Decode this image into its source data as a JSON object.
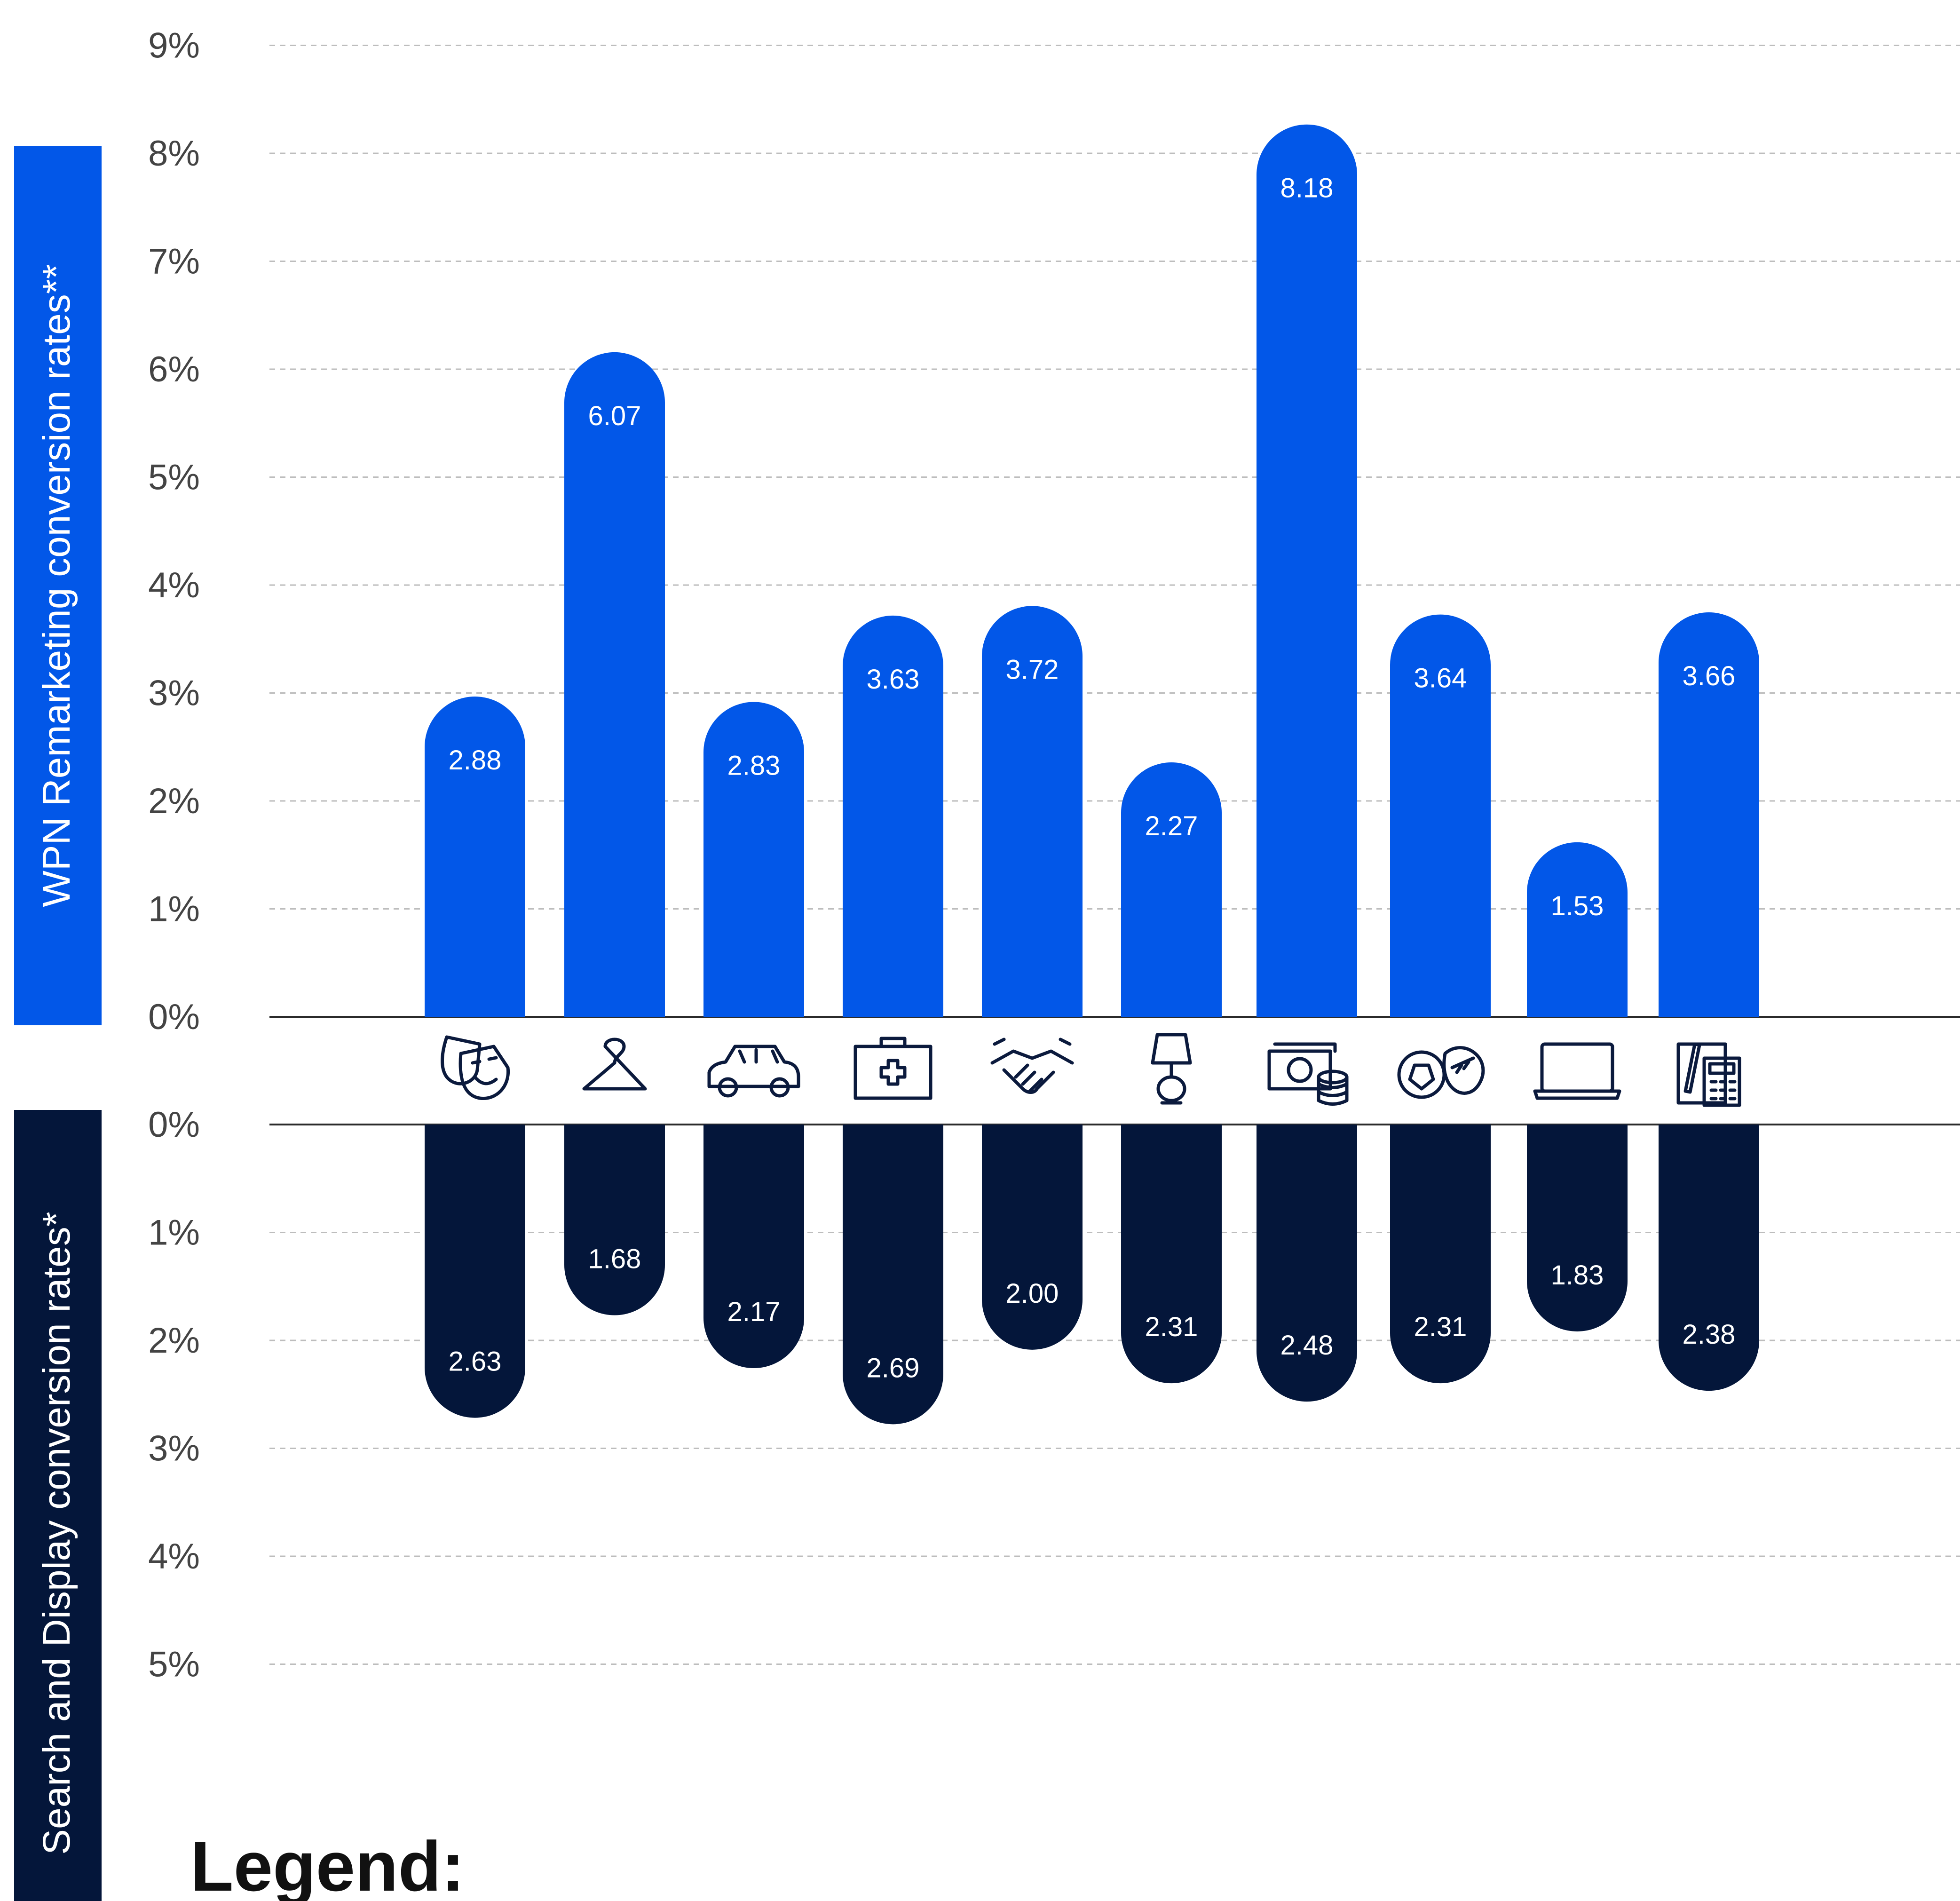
{
  "chart_data": {
    "type": "bar",
    "categories": [
      "Arts & Entertainment",
      "Apparel",
      "Automotive",
      "Health & Medical",
      "Business Services",
      "Home & Furniture",
      "Finance",
      "Sports",
      "Technology",
      "Office & Accounting"
    ],
    "category_icons": [
      "theater-masks-icon",
      "hanger-icon",
      "car-icon",
      "first-aid-kit-icon",
      "handshake-icon",
      "lamp-icon",
      "money-coins-icon",
      "sports-balls-icon",
      "laptop-icon",
      "calculator-icon"
    ],
    "series": [
      {
        "axis_label": "WPN Remarketing conversion rates**",
        "color": "#0257E8",
        "direction": "up",
        "values": [
          2.88,
          6.07,
          2.83,
          3.63,
          3.72,
          2.27,
          8.18,
          3.64,
          1.53,
          3.66
        ],
        "labels": [
          "2.88",
          "6.07",
          "2.83",
          "3.63",
          "3.72",
          "2.27",
          "8.18",
          "3.64",
          "1.53",
          "3.66"
        ]
      },
      {
        "axis_label": "Search and Display conversion rates*",
        "color": "#04163A",
        "direction": "down",
        "values": [
          2.63,
          1.68,
          2.17,
          2.69,
          2.0,
          2.31,
          2.48,
          2.31,
          1.83,
          2.38
        ],
        "labels": [
          "2.63",
          "1.68",
          "2.17",
          "2.69",
          "2.00",
          "2.31",
          "2.48",
          "2.31",
          "1.83",
          "2.38"
        ]
      }
    ],
    "upper_ticks": [
      "9%",
      "8%",
      "7%",
      "6%",
      "5%",
      "4%",
      "3%",
      "2%",
      "1%",
      "0%"
    ],
    "lower_ticks": [
      "0%",
      "1%",
      "2%",
      "3%",
      "4%",
      "5%"
    ],
    "upper_ylim": [
      0,
      9
    ],
    "lower_ylim": [
      0,
      5
    ],
    "grid": true,
    "legend_title": "Legend:"
  }
}
